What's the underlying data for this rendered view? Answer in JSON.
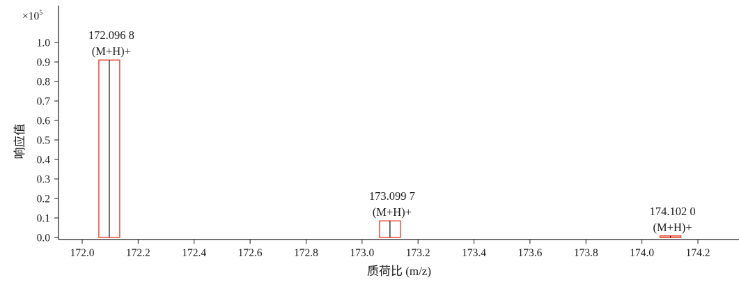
{
  "chart_data": {
    "type": "bar",
    "title": "",
    "xlabel": "质荷比 (m/z)",
    "ylabel": "响应值",
    "y_multiplier": "×10",
    "y_multiplier_exp": "5",
    "xlim": [
      172.0,
      174.2
    ],
    "ylim": [
      0.0,
      1.0
    ],
    "x_ticks": [
      "172.0",
      "172.2",
      "172.4",
      "172.6",
      "172.8",
      "173.0",
      "173.2",
      "173.4",
      "173.6",
      "173.8",
      "174.0",
      "174.2"
    ],
    "y_ticks": [
      "0.0",
      "0.1",
      "0.2",
      "0.3",
      "0.4",
      "0.5",
      "0.6",
      "0.7",
      "0.8",
      "0.9",
      "1.0"
    ],
    "grid": false,
    "series": [
      {
        "peaks": [
          {
            "x": 172.0968,
            "y": 0.91,
            "mass_label": "172.096 8",
            "ion_label": "(M+H)+"
          },
          {
            "x": 173.0997,
            "y": 0.085,
            "mass_label": "173.099 7",
            "ion_label": "(M+H)+"
          },
          {
            "x": 174.102,
            "y": 0.008,
            "mass_label": "174.102 0",
            "ion_label": "(M+H)+"
          }
        ]
      }
    ],
    "colors": {
      "peak_line": "#1a1a1a",
      "peak_box": "#e8432e",
      "peak_fill": "#f6d8d2",
      "axis": "#1a1a1a"
    }
  }
}
